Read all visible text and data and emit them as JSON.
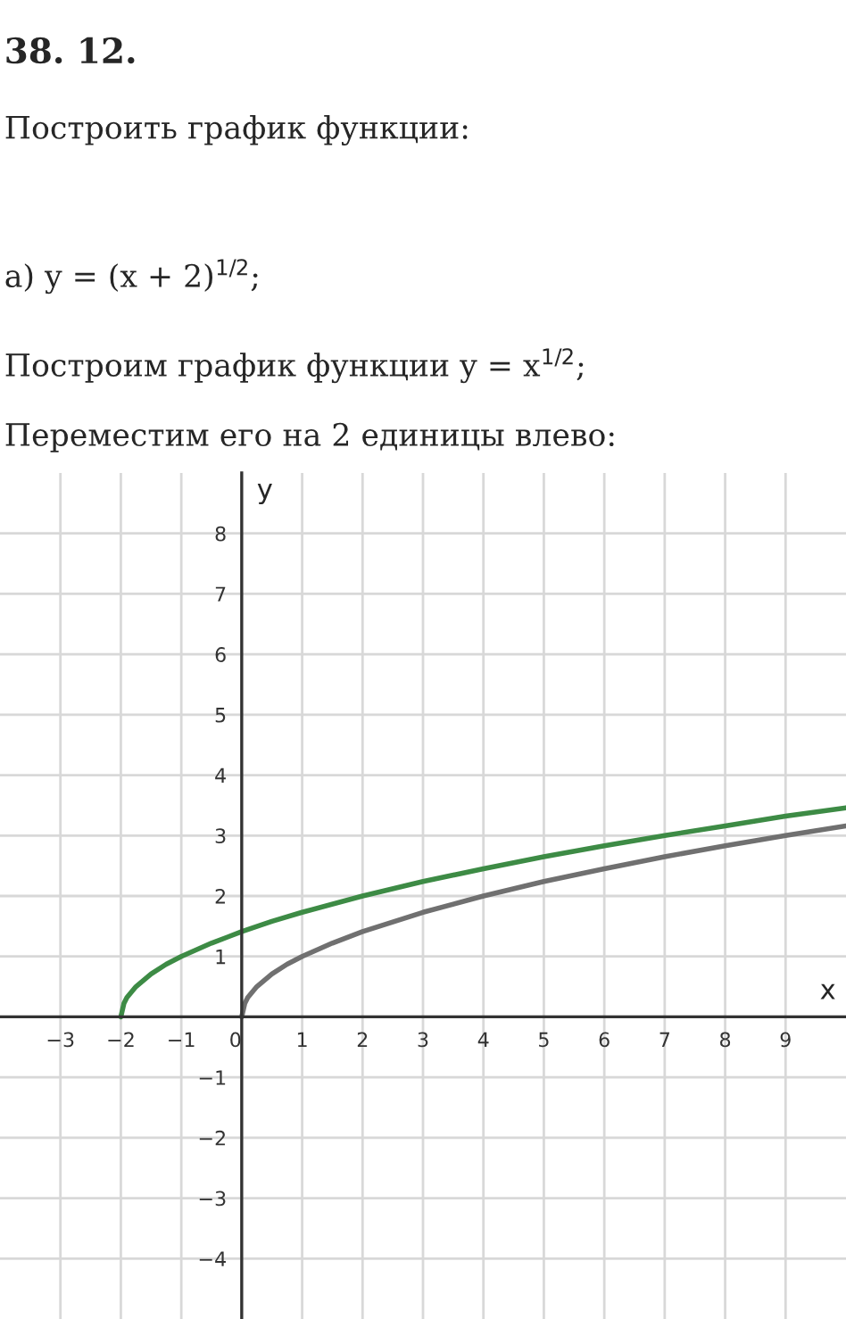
{
  "chart_data": {
    "type": "line",
    "title": "38. 12.",
    "subtitle": "Построить график функции:",
    "annotations": [
      "а) y = (x + 2)$^{1/2}$;",
      "Построим график функции y = x$^{1/2}$;",
      "Переместим его на 2 единицы влево:"
    ],
    "xlabel": "x",
    "ylabel": "y",
    "series": [
      {
        "color": "#3d8b45",
        "x": [
          -2,
          -1.95,
          -1.9,
          -1.75,
          -1.5,
          -1.25,
          -1,
          -0.5,
          0,
          0.5,
          1,
          2,
          3,
          4,
          5,
          6,
          7,
          8,
          9,
          10
        ],
        "values": [
          0,
          0.22,
          0.32,
          0.5,
          0.71,
          0.87,
          1,
          1.22,
          1.41,
          1.58,
          1.73,
          2,
          2.24,
          2.45,
          2.65,
          2.83,
          3,
          3.16,
          3.32,
          3.46
        ]
      },
      {
        "color": "#707070",
        "x": [
          0,
          0.05,
          0.1,
          0.25,
          0.5,
          0.75,
          1,
          1.5,
          2,
          3,
          4,
          5,
          6,
          7,
          8,
          9,
          10
        ],
        "values": [
          0,
          0.22,
          0.32,
          0.5,
          0.71,
          0.87,
          1,
          1.22,
          1.41,
          1.73,
          2,
          2.24,
          2.45,
          2.65,
          2.83,
          3,
          3.16
        ]
      }
    ],
    "xlim": [
      -4,
      10
    ],
    "ylim": [
      -5,
      9
    ],
    "xticks": [
      -3,
      -2,
      -1,
      0,
      1,
      2,
      3,
      4,
      5,
      6,
      7,
      8,
      9
    ],
    "yticks": [
      -4,
      -3,
      -2,
      -1,
      1,
      2,
      3,
      4,
      5,
      6,
      7,
      8
    ],
    "grid": true,
    "marker": "none",
    "line_style": "solid",
    "legend": false
  }
}
